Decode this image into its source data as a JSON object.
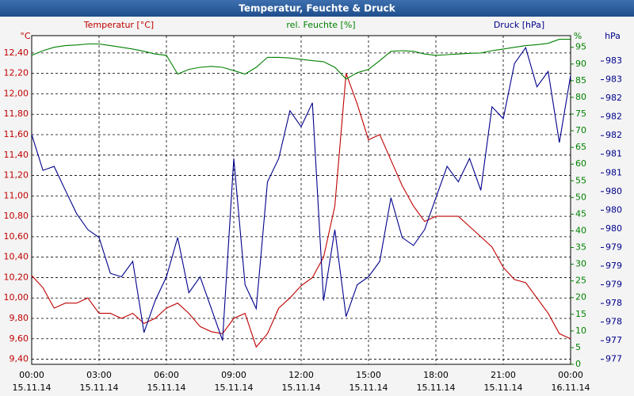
{
  "chart_data": {
    "type": "line",
    "title": "Temperatur, Feuchte & Druck",
    "x": [
      0,
      0.5,
      1,
      1.5,
      2,
      2.5,
      3,
      3.5,
      4,
      4.5,
      5,
      5.5,
      6,
      6.5,
      7,
      7.5,
      8,
      8.5,
      9,
      9.5,
      10,
      10.5,
      11,
      11.5,
      12,
      12.5,
      13,
      13.5,
      14,
      14.5,
      15,
      15.5,
      16,
      16.5,
      17,
      17.5,
      18,
      18.5,
      19,
      19.5,
      20,
      20.5,
      21,
      21.5,
      22,
      22.5,
      23,
      23.5,
      24
    ],
    "xlim": [
      0,
      24
    ],
    "xticks": [
      {
        "value": 0,
        "label": "00:00"
      },
      {
        "value": 3,
        "label": "03:00"
      },
      {
        "value": 6,
        "label": "06:00"
      },
      {
        "value": 9,
        "label": "09:00"
      },
      {
        "value": 12,
        "label": "12:00"
      },
      {
        "value": 15,
        "label": "15:00"
      },
      {
        "value": 18,
        "label": "18:00"
      },
      {
        "value": 21,
        "label": "21:00"
      },
      {
        "value": 24,
        "label": "00:00"
      }
    ],
    "xtick_dates": [
      "15.11.14",
      "15.11.14",
      "15.11.14",
      "15.11.14",
      "15.11.14",
      "15.11.14",
      "15.11.14",
      "15.11.14",
      "16.11.14"
    ],
    "ylabel": "Temperatur [°C]",
    "yunit": "°C",
    "ylim": [
      9.35,
      12.57
    ],
    "yticks": [
      {
        "value": 9.4,
        "label": "9,40"
      },
      {
        "value": 9.6,
        "label": "9,60"
      },
      {
        "value": 9.8,
        "label": "9,80"
      },
      {
        "value": 10.0,
        "label": "10,00"
      },
      {
        "value": 10.2,
        "label": "10,20"
      },
      {
        "value": 10.4,
        "label": "10,40"
      },
      {
        "value": 10.6,
        "label": "10,60"
      },
      {
        "value": 10.8,
        "label": "10,80"
      },
      {
        "value": 11.0,
        "label": "11,00"
      },
      {
        "value": 11.2,
        "label": "11,20"
      },
      {
        "value": 11.4,
        "label": "11,40"
      },
      {
        "value": 11.6,
        "label": "11,60"
      },
      {
        "value": 11.8,
        "label": "11,80"
      },
      {
        "value": 12.0,
        "label": "12,00"
      },
      {
        "value": 12.2,
        "label": "12,20"
      },
      {
        "value": 12.4,
        "label": "12,40"
      }
    ],
    "y2label": "rel. Feuchte [%]",
    "y2unit": "%",
    "y2lim": [
      0,
      98.5
    ],
    "y2ticks": [
      0,
      5,
      10,
      15,
      20,
      25,
      30,
      35,
      40,
      45,
      50,
      55,
      60,
      65,
      70,
      75,
      80,
      85,
      90,
      95
    ],
    "y3label": "Druck [hPa]",
    "y3unit": "hPa",
    "y3lim": [
      976.9,
      983.51
    ],
    "y3ticks": [
      977,
      {
        "value": 977.375,
        "label": "977"
      },
      {
        "value": 977.75,
        "label": "978"
      },
      {
        "value": 978.125,
        "label": "978"
      },
      {
        "value": 978.5,
        "label": "979"
      },
      {
        "value": 978.875,
        "label": "979"
      },
      {
        "value": 979.25,
        "label": "979"
      },
      {
        "value": 979.625,
        "label": "980"
      },
      980,
      {
        "value": 980.375,
        "label": "980"
      },
      {
        "value": 980.75,
        "label": "981"
      },
      {
        "value": 981.125,
        "label": "981"
      },
      {
        "value": 981.5,
        "label": "982"
      },
      {
        "value": 981.875,
        "label": "982"
      },
      {
        "value": 982.25,
        "label": "982"
      },
      {
        "value": 982.625,
        "label": "983"
      },
      983
    ],
    "grid": true,
    "series": [
      {
        "name": "Temperatur [°C]",
        "color": "#c00000",
        "axis": "y",
        "values": [
          10.22,
          10.1,
          9.9,
          9.95,
          9.95,
          10.0,
          9.85,
          9.85,
          9.8,
          9.85,
          9.75,
          9.8,
          9.9,
          9.95,
          9.85,
          9.72,
          9.67,
          9.65,
          9.8,
          9.85,
          9.52,
          9.65,
          9.9,
          10.0,
          10.12,
          10.2,
          10.4,
          10.9,
          12.2,
          11.9,
          11.55,
          11.6,
          11.35,
          11.1,
          10.9,
          10.75,
          10.8,
          10.8,
          10.8,
          10.7,
          10.6,
          10.5,
          10.3,
          10.18,
          10.15,
          10.0,
          9.85,
          9.65,
          9.6
        ]
      },
      {
        "name": "rel. Feuchte [%]",
        "color": "#008000",
        "axis": "y2",
        "values": [
          92.6,
          94,
          95,
          95.5,
          95.7,
          96,
          96,
          95.5,
          95,
          94.5,
          93.8,
          93,
          92.6,
          87,
          88.4,
          89,
          89.3,
          89,
          88,
          87,
          89,
          92,
          92,
          91.8,
          91.4,
          91,
          90.7,
          89,
          85.5,
          87.4,
          88.4,
          91,
          93.8,
          94,
          93.8,
          93,
          92.6,
          92.8,
          93,
          93.2,
          93.3,
          94,
          94.5,
          95,
          95.5,
          95.8,
          96.2,
          97.4,
          97.4
        ]
      },
      {
        "name": "Druck [hPa]",
        "color": "#00008b",
        "axis": "y3",
        "values": [
          981.52,
          980.8,
          980.88,
          980.4,
          979.93,
          979.61,
          979.45,
          978.73,
          978.66,
          978.97,
          977.54,
          978.18,
          978.66,
          979.45,
          978.34,
          978.66,
          978.02,
          977.38,
          981.04,
          978.5,
          978.02,
          980.57,
          981.04,
          982.0,
          981.68,
          982.16,
          978.18,
          979.61,
          977.86,
          978.5,
          978.66,
          978.97,
          980.25,
          979.45,
          979.29,
          979.61,
          980.25,
          980.88,
          980.57,
          981.04,
          980.4,
          982.08,
          981.84,
          982.95,
          983.27,
          982.48,
          982.79,
          981.36,
          982.71
        ]
      }
    ]
  }
}
